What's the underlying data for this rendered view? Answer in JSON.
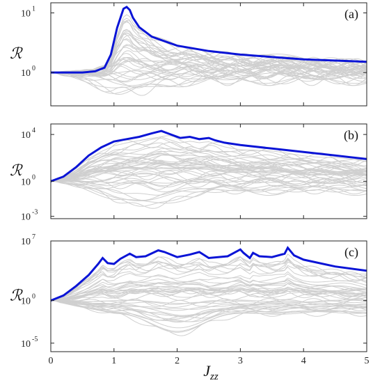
{
  "chart_data": {
    "type": "line",
    "xlabel": "J",
    "xlabel_sub": "zz",
    "ylabel": "ℛ",
    "x_ticks": [
      "0",
      "1",
      "2",
      "3",
      "4",
      "5"
    ],
    "xlim": [
      0,
      5
    ],
    "panels": [
      {
        "tag": "(a)",
        "yscale": "log",
        "ylim_log10": [
          -0.56,
          1.17
        ],
        "y_ticks": [
          {
            "base": "10",
            "exp": "0",
            "log": 0
          },
          {
            "base": "10",
            "exp": "1",
            "log": 1
          }
        ],
        "envelope": {
          "x": [
            0,
            0.5,
            0.7,
            0.85,
            0.95,
            1.05,
            1.15,
            1.2,
            1.25,
            1.3,
            1.4,
            1.6,
            2.0,
            2.5,
            3.0,
            4.0,
            5.0
          ],
          "log": [
            0,
            0,
            0.02,
            0.08,
            0.3,
            0.75,
            1.07,
            1.1,
            1.05,
            0.92,
            0.76,
            0.6,
            0.45,
            0.36,
            0.3,
            0.22,
            0.18
          ]
        },
        "gray": {
          "count": 40,
          "peak_x": 1.2,
          "seed": 11
        }
      },
      {
        "tag": "(b)",
        "yscale": "log",
        "ylim_log10": [
          -3.2,
          4.9
        ],
        "y_ticks": [
          {
            "base": "10",
            "exp": "-3",
            "log": -3
          },
          {
            "base": "10",
            "exp": "0",
            "log": 0
          },
          {
            "base": "10",
            "exp": "4",
            "log": 4
          }
        ],
        "envelope": {
          "x": [
            0,
            0.2,
            0.4,
            0.6,
            0.8,
            1.0,
            1.2,
            1.4,
            1.6,
            1.75,
            1.9,
            2.05,
            2.2,
            2.35,
            2.5,
            2.6,
            2.75,
            3.0,
            3.5,
            4.0,
            4.5,
            5.0
          ],
          "log": [
            0,
            0.4,
            1.2,
            2.2,
            2.9,
            3.4,
            3.6,
            3.8,
            4.1,
            4.3,
            4.0,
            3.7,
            3.8,
            3.6,
            3.7,
            3.5,
            3.3,
            3.1,
            2.8,
            2.5,
            2.2,
            1.9
          ]
        },
        "gray": {
          "count": 45,
          "peak_x": 1.5,
          "seed": 29
        }
      },
      {
        "tag": "(c)",
        "yscale": "log",
        "ylim_log10": [
          -6.0,
          7.0
        ],
        "y_ticks": [
          {
            "base": "10",
            "exp": "-5",
            "log": -5
          },
          {
            "base": "10",
            "exp": "0",
            "log": 0
          },
          {
            "base": "10",
            "exp": "7",
            "log": 7
          }
        ],
        "envelope": {
          "x": [
            0,
            0.2,
            0.4,
            0.6,
            0.75,
            0.82,
            0.9,
            1.0,
            1.1,
            1.25,
            1.35,
            1.5,
            1.7,
            1.8,
            2.0,
            2.2,
            2.35,
            2.5,
            2.8,
            3.0,
            3.05,
            3.15,
            3.2,
            3.3,
            3.5,
            3.7,
            3.75,
            3.85,
            4.0,
            4.5,
            5.0
          ],
          "log": [
            0,
            0.6,
            1.7,
            3.0,
            4.3,
            5.0,
            4.4,
            4.3,
            4.9,
            5.5,
            5.1,
            5.2,
            5.9,
            5.7,
            5.1,
            5.4,
            5.7,
            5.0,
            5.2,
            6.0,
            5.6,
            5.0,
            5.6,
            5.2,
            5.1,
            5.5,
            6.2,
            5.3,
            4.8,
            4.0,
            3.5
          ]
        },
        "gray": {
          "count": 45,
          "peak_x": 2.0,
          "seed": 53
        }
      }
    ]
  },
  "colors": {
    "envelope": "#0a14d6",
    "gray": "#cfcfcf",
    "axis": "#222222"
  }
}
